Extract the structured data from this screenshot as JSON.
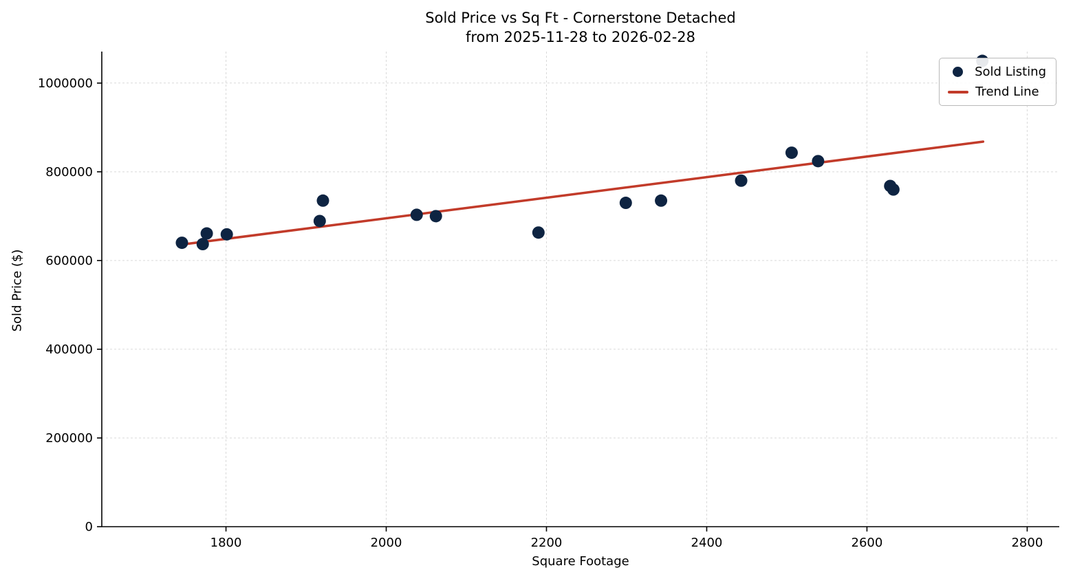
{
  "chart": {
    "title_line1": "Sold Price vs Sq Ft - Cornerstone Detached",
    "title_line2": "from 2025-11-28 to 2026-02-28",
    "xlabel": "Square Footage",
    "ylabel": "Sold Price ($)"
  },
  "chart_data": {
    "type": "scatter",
    "title": "Sold Price vs Sq Ft - Cornerstone Detached\nfrom 2025-11-28 to 2026-02-28",
    "xlabel": "Square Footage",
    "ylabel": "Sold Price ($)",
    "xlim": [
      1645,
      2840
    ],
    "ylim": [
      0,
      1071000
    ],
    "xticks": [
      1800,
      2000,
      2200,
      2400,
      2600,
      2800
    ],
    "yticks": [
      0,
      200000,
      400000,
      600000,
      800000,
      1000000
    ],
    "grid": true,
    "grid_style": "dashed",
    "legend_position": "upper right",
    "colors": {
      "point": "#0e2442",
      "trend": "#c23b2a",
      "grid": "#d9d9d9",
      "axis": "#000000"
    },
    "series": [
      {
        "name": "Sold Listing",
        "type": "scatter",
        "color": "#0e2442",
        "points": [
          {
            "sqft": 1745,
            "price": 640000
          },
          {
            "sqft": 1771,
            "price": 637000
          },
          {
            "sqft": 1776,
            "price": 661000
          },
          {
            "sqft": 1801,
            "price": 659000
          },
          {
            "sqft": 1917,
            "price": 689000
          },
          {
            "sqft": 1921,
            "price": 735000
          },
          {
            "sqft": 2038,
            "price": 703000
          },
          {
            "sqft": 2062,
            "price": 700000
          },
          {
            "sqft": 2190,
            "price": 663000
          },
          {
            "sqft": 2299,
            "price": 730000
          },
          {
            "sqft": 2343,
            "price": 735000
          },
          {
            "sqft": 2443,
            "price": 780000
          },
          {
            "sqft": 2506,
            "price": 843000
          },
          {
            "sqft": 2539,
            "price": 824000
          },
          {
            "sqft": 2629,
            "price": 768000
          },
          {
            "sqft": 2633,
            "price": 760000
          },
          {
            "sqft": 2744,
            "price": 1050000
          }
        ]
      },
      {
        "name": "Trend Line",
        "type": "line",
        "color": "#c23b2a",
        "x": [
          1745,
          2745
        ],
        "y": [
          636000,
          868000
        ]
      }
    ]
  }
}
